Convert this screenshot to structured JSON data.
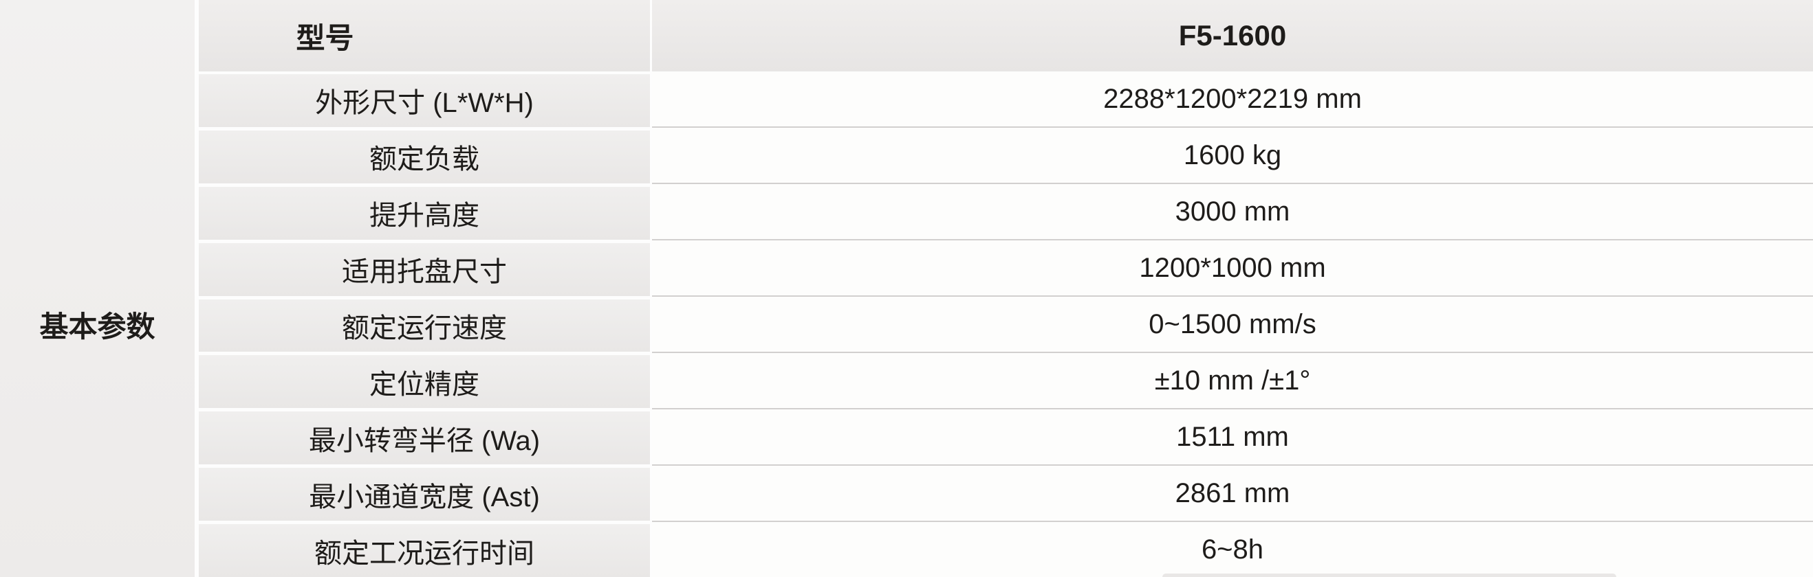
{
  "table": {
    "group_label": "基本参数",
    "header": {
      "label": "型号",
      "value": "F5-1600"
    },
    "rows": [
      {
        "label": "外形尺寸 (L*W*H)",
        "value": "2288*1200*2219 mm"
      },
      {
        "label": "额定负载",
        "value": "1600 kg"
      },
      {
        "label": "提升高度",
        "value": "3000 mm"
      },
      {
        "label": "适用托盘尺寸",
        "value": "1200*1000 mm"
      },
      {
        "label": "额定运行速度",
        "value": "0~1500 mm/s"
      },
      {
        "label": "定位精度",
        "value": "±10 mm /±1°"
      },
      {
        "label": "最小转弯半径 (Wa)",
        "value": "1511 mm"
      },
      {
        "label": "最小通道宽度 (Ast)",
        "value": "2861 mm"
      },
      {
        "label": "额定工况运行时间",
        "value": "6~8h"
      }
    ]
  },
  "colors": {
    "text": "#1e1c1a",
    "header-top": "#f0eeed",
    "header-bottom": "#e7e5e4",
    "label-top": "#f0efee",
    "label-bottom": "#e9e7e6",
    "value-bg": "#fdfdfc",
    "separator": "#d2d0cf",
    "gap-white": "#fdfdfd"
  }
}
